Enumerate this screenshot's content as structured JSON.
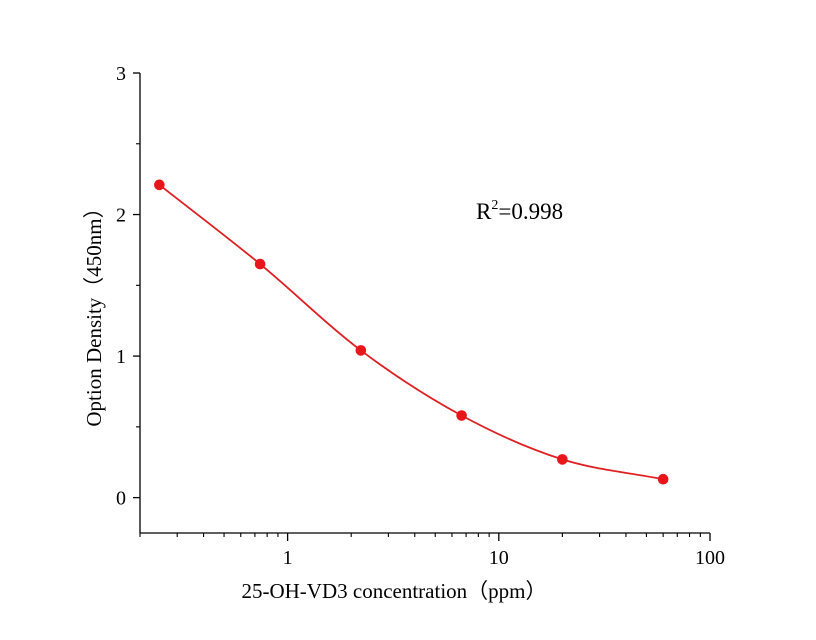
{
  "chart_data": {
    "type": "scatter",
    "title": "",
    "xlabel": "25-OH-VD3 concentration（ppm）",
    "ylabel": "Option Density（450nm）",
    "x_scale": "log",
    "xlim": [
      0.2,
      100
    ],
    "ylim": [
      -0.25,
      3
    ],
    "x_ticks": [
      1,
      10,
      100
    ],
    "x_tick_labels": [
      "1",
      "10",
      "100"
    ],
    "y_ticks": [
      0,
      1,
      2,
      3
    ],
    "y_tick_labels": [
      "0",
      "1",
      "2",
      "3"
    ],
    "grid": false,
    "legend": "none",
    "annotation": {
      "base": "R",
      "sup": "2",
      "rest": "=0.998"
    },
    "series": [
      {
        "x": [
          0.247,
          0.741,
          2.222,
          6.667,
          20,
          60
        ],
        "y": [
          2.21,
          1.65,
          1.04,
          0.58,
          0.27,
          0.13
        ],
        "marker_color": "#e8161b",
        "fit_curve": true,
        "curve_color": "#e01f22"
      }
    ]
  }
}
